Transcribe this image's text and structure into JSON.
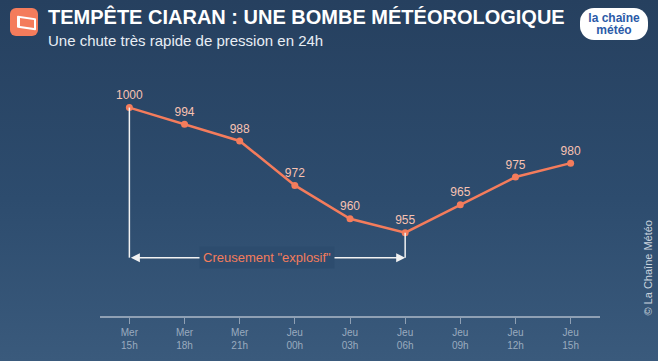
{
  "chart_data": {
    "type": "line",
    "title": "TEMPÊTE CIARAN : UNE BOMBE MÉTÉOROLOGIQUE",
    "subtitle": "Une chute très rapide de pression en 24h",
    "logo": "la chaîne météo",
    "credit": "© La Chaîne Météo",
    "categories": [
      "Mer 15h",
      "Mer 18h",
      "Mer 21h",
      "Jeu 00h",
      "Jeu 03h",
      "Jeu 06h",
      "Jeu 09h",
      "Jeu 12h",
      "Jeu 15h"
    ],
    "values": [
      1000,
      994,
      988,
      972,
      960,
      955,
      965,
      975,
      980
    ],
    "color": "#f47c5c",
    "marker": "circle",
    "data_labels": true,
    "ylim": [
      925,
      1020
    ],
    "yticks": [],
    "tick_labels": "x",
    "grid": false,
    "annotations": [
      {
        "text": "Creusement \"explosif\"",
        "start": "Mer 15h",
        "end": "Jeu 06h",
        "y": 946
      }
    ]
  }
}
